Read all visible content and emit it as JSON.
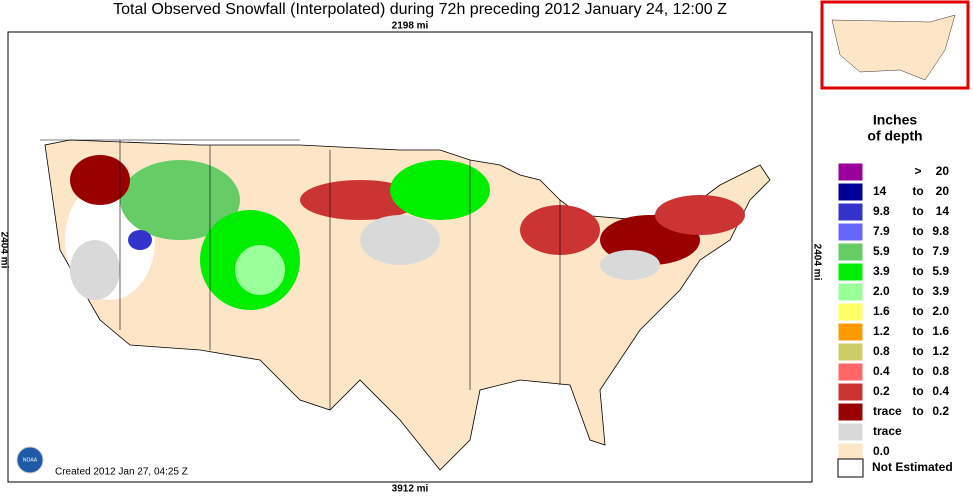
{
  "title": "Total Observed Snowfall (Interpolated) during 72h preceding 2012 January 24, 12:00 Z",
  "map": {
    "top_scale": "2198 mi",
    "bottom_scale": "3912 mi",
    "left_scale": "2404 mi",
    "right_scale": "2404 mi",
    "created": "Created 2012 Jan 27, 04:25 Z",
    "logo": "NOAA"
  },
  "legend": {
    "title_line1": "Inches",
    "title_line2": "of depth",
    "items": [
      {
        "color": "#990099",
        "sep": ">",
        "high": "20"
      },
      {
        "color": "#000099",
        "low": "14",
        "sep": "to",
        "high": "20"
      },
      {
        "color": "#3333cc",
        "low": "9.8",
        "sep": "to",
        "high": "14"
      },
      {
        "color": "#6666ff",
        "low": "7.9",
        "sep": "to",
        "high": "9.8"
      },
      {
        "color": "#66cc66",
        "low": "5.9",
        "sep": "to",
        "high": "7.9"
      },
      {
        "color": "#00ee00",
        "low": "3.9",
        "sep": "to",
        "high": "5.9"
      },
      {
        "color": "#99ff99",
        "low": "2.0",
        "sep": "to",
        "high": "3.9"
      },
      {
        "color": "#ffff66",
        "low": "1.6",
        "sep": "to",
        "high": "2.0"
      },
      {
        "color": "#ff9900",
        "low": "1.2",
        "sep": "to",
        "high": "1.6"
      },
      {
        "color": "#cccc66",
        "low": "0.8",
        "sep": "to",
        "high": "1.2"
      },
      {
        "color": "#ff6666",
        "low": "0.4",
        "sep": "to",
        "high": "0.8"
      },
      {
        "color": "#cc3333",
        "low": "0.2",
        "sep": "to",
        "high": "0.4"
      },
      {
        "color": "#990000",
        "low": "trace",
        "sep": "to",
        "high": "0.2"
      },
      {
        "color": "#d9d9d9",
        "low": "trace"
      },
      {
        "color": "#fde5c8",
        "low": "0.0"
      }
    ],
    "not_estimated": "Not Estimated"
  }
}
